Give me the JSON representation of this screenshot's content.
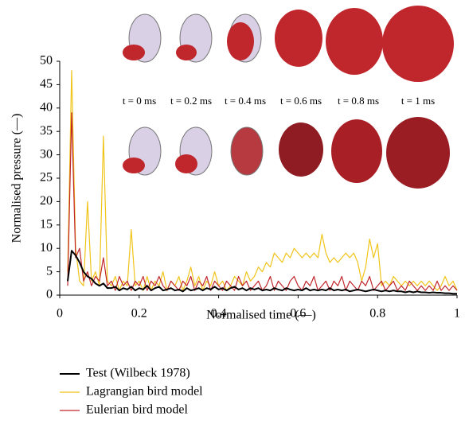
{
  "chart_data": {
    "type": "line",
    "xlabel": "Normalised time (—)",
    "ylabel": "Normalised pressure (—)",
    "annotations": [
      "t = 0 ms",
      "t = 0.2 ms",
      "t = 0.4 ms",
      "t = 0.6 ms",
      "t = 0.8 ms",
      "t = 1 ms"
    ],
    "xlim": [
      0,
      1
    ],
    "xticks": [
      0,
      0.2,
      0.4,
      0.6,
      0.8,
      1
    ],
    "ylim": [
      0,
      50
    ],
    "yticks": [
      0,
      5,
      10,
      15,
      20,
      25,
      30,
      35,
      40,
      45,
      50
    ],
    "x": [
      0.02,
      0.03,
      0.04,
      0.05,
      0.06,
      0.07,
      0.08,
      0.09,
      0.1,
      0.11,
      0.12,
      0.13,
      0.14,
      0.15,
      0.16,
      0.17,
      0.18,
      0.19,
      0.2,
      0.21,
      0.22,
      0.23,
      0.24,
      0.25,
      0.26,
      0.27,
      0.28,
      0.29,
      0.3,
      0.31,
      0.32,
      0.33,
      0.34,
      0.35,
      0.36,
      0.37,
      0.38,
      0.39,
      0.4,
      0.41,
      0.42,
      0.43,
      0.44,
      0.45,
      0.46,
      0.47,
      0.48,
      0.49,
      0.5,
      0.51,
      0.52,
      0.53,
      0.54,
      0.55,
      0.56,
      0.57,
      0.58,
      0.59,
      0.6,
      0.61,
      0.62,
      0.63,
      0.64,
      0.65,
      0.66,
      0.67,
      0.68,
      0.69,
      0.7,
      0.71,
      0.72,
      0.73,
      0.74,
      0.75,
      0.76,
      0.77,
      0.78,
      0.79,
      0.8,
      0.81,
      0.82,
      0.83,
      0.84,
      0.85,
      0.86,
      0.87,
      0.88,
      0.89,
      0.9,
      0.91,
      0.92,
      0.93,
      0.94,
      0.95,
      0.96,
      0.97,
      0.98,
      0.99,
      1.0
    ],
    "series": [
      {
        "name": "Lagrangian bird model",
        "color": "#f0c419",
        "width": 1.2,
        "values": [
          5,
          48,
          10,
          3,
          2,
          20,
          3,
          5,
          2,
          34,
          3,
          2,
          4,
          1,
          3,
          2,
          14,
          2,
          3,
          1,
          4,
          1,
          3,
          2,
          5,
          1,
          3,
          2,
          4,
          1,
          3,
          6,
          2,
          4,
          1,
          3,
          2,
          5,
          2,
          3,
          1,
          2,
          4,
          3,
          2,
          5,
          3,
          4,
          6,
          5,
          7,
          6,
          9,
          8,
          7,
          9,
          8,
          10,
          9,
          8,
          9,
          8,
          9,
          8,
          13,
          9,
          7,
          8,
          7,
          8,
          9,
          8,
          9,
          7,
          3,
          6,
          12,
          8,
          11,
          2,
          3,
          2,
          4,
          3,
          2,
          3,
          2,
          3,
          2,
          3,
          2,
          3,
          2,
          1,
          2,
          4,
          2,
          3,
          1
        ]
      },
      {
        "name": "Eulerian bird model",
        "color": "#c0272d",
        "width": 1.2,
        "values": [
          2,
          39,
          8,
          10,
          3,
          5,
          2,
          4,
          3,
          8,
          2,
          3,
          1,
          4,
          2,
          3,
          1,
          3,
          2,
          4,
          1,
          3,
          2,
          4,
          2,
          1,
          3,
          2,
          1,
          3,
          2,
          4,
          1,
          3,
          2,
          4,
          1,
          3,
          2,
          1,
          3,
          2,
          1,
          4,
          2,
          3,
          1,
          2,
          3,
          1,
          2,
          4,
          1,
          3,
          2,
          1,
          3,
          4,
          2,
          1,
          3,
          2,
          4,
          1,
          2,
          3,
          1,
          3,
          2,
          4,
          1,
          3,
          2,
          1,
          3,
          2,
          4,
          1,
          2,
          3,
          1,
          2,
          3,
          1,
          2,
          1,
          3,
          2,
          1,
          2,
          1,
          2,
          1,
          3,
          1,
          2,
          1,
          2,
          1
        ]
      },
      {
        "name": "Test (Wilbeck 1978)",
        "color": "#000000",
        "width": 2,
        "values": [
          3,
          9.5,
          8.5,
          7,
          5,
          4,
          3.5,
          2.5,
          2,
          2.5,
          1.5,
          1.5,
          1.8,
          1,
          1.5,
          1.2,
          1.8,
          1,
          1.5,
          1.2,
          2,
          1,
          1.5,
          1.8,
          1,
          1.2,
          1.5,
          1,
          1.2,
          0.8,
          1.5,
          1,
          1.2,
          1.5,
          1,
          1.5,
          1.2,
          1.8,
          1.2,
          1.5,
          1,
          1.5,
          1.8,
          1.2,
          1.5,
          1,
          1.5,
          1.2,
          1.5,
          1,
          1.2,
          1,
          1.5,
          1.2,
          1,
          1.5,
          1.2,
          1,
          1.2,
          1,
          1.5,
          1,
          1.2,
          1,
          1.2,
          1,
          1.5,
          1,
          1.2,
          1,
          1.2,
          0.8,
          1,
          1.2,
          1,
          0.8,
          1,
          1.2,
          1,
          0.8,
          1,
          0.8,
          1,
          0.8,
          0.8,
          0.6,
          0.8,
          0.6,
          0.8,
          0.6,
          0.6,
          0.5,
          0.6,
          0.5,
          0.5,
          0.4,
          0.4,
          0.3,
          0.3
        ]
      }
    ],
    "legend_order": [
      2,
      0,
      1
    ]
  }
}
